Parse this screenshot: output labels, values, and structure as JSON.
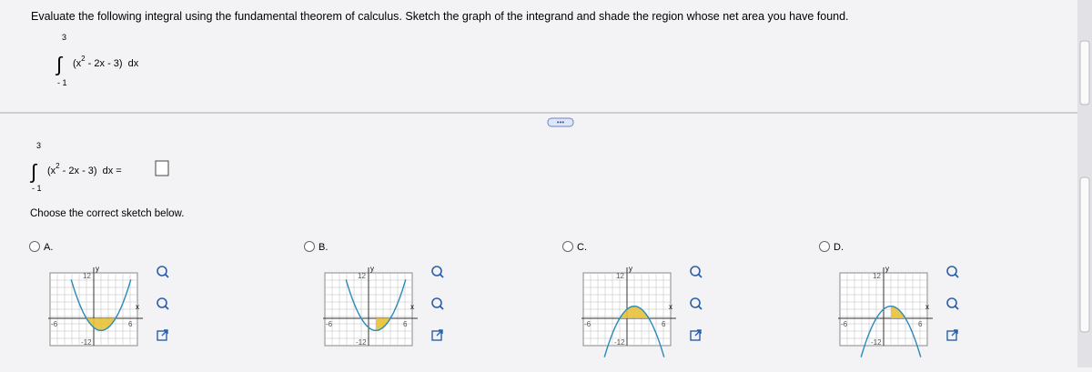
{
  "question": "Evaluate the following integral using the fundamental theorem of calculus. Sketch the graph of the integrand and shade the region whose net area you have found.",
  "integral": {
    "upper": "3",
    "lower": "- 1",
    "open": "(x",
    "exp": "2",
    "rest": " - 2x - 3)",
    "dx": "dx"
  },
  "answer": {
    "upper": "3",
    "lower": "- 1",
    "open": "(x",
    "exp": "2",
    "rest": " - 2x - 3)",
    "dx": "dx ="
  },
  "prompt": "Choose the correct sketch below.",
  "options": [
    {
      "label": "A.",
      "y_axis": "y",
      "x_axis": "x",
      "y_top": "12",
      "y_bottom": "-12",
      "x_left": "-6",
      "x_right": "6"
    },
    {
      "label": "B.",
      "y_axis": "y",
      "x_axis": "x",
      "y_top": "12",
      "y_bottom": "-12",
      "x_left": "-6",
      "x_right": "6"
    },
    {
      "label": "C.",
      "y_axis": "y",
      "x_axis": "x",
      "y_top": "12",
      "y_bottom": "-12",
      "x_left": "-6",
      "x_right": "6"
    },
    {
      "label": "D.",
      "y_axis": "y",
      "x_axis": "x",
      "y_top": "12",
      "y_bottom": "-12",
      "x_left": "-6",
      "x_right": "6"
    }
  ]
}
